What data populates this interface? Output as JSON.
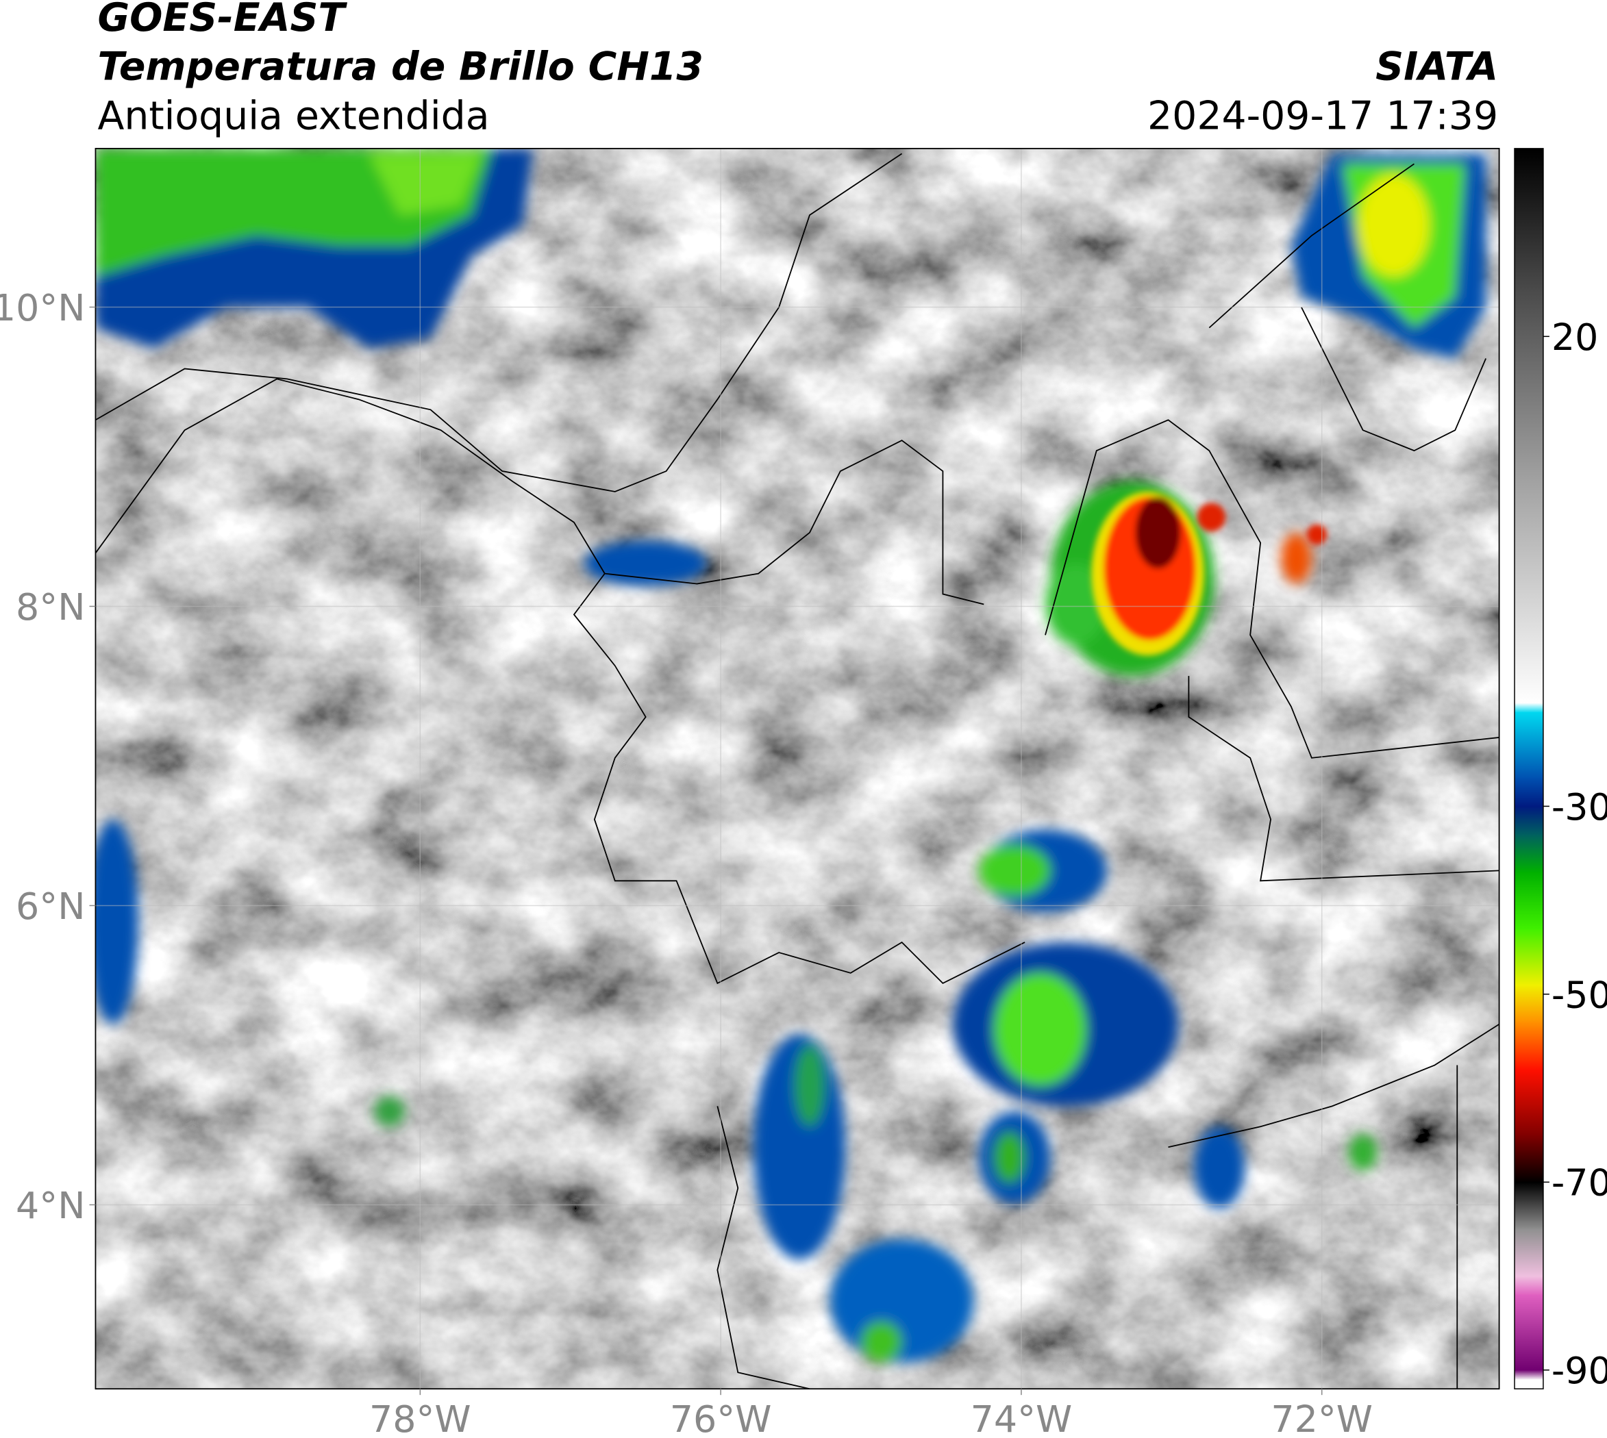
{
  "header": {
    "title": "GOES-EAST",
    "subtitle": "Temperatura de Brillo CH13",
    "region": "Antioquia extendida",
    "source": "SIATA",
    "datetime": "2024-09-17 17:39"
  },
  "map": {
    "xlim": [
      -80.16,
      -70.82
    ],
    "ylim": [
      2.77,
      11.06
    ],
    "xticks": [
      {
        "value": -78,
        "label": "78°W"
      },
      {
        "value": -76,
        "label": "76°W"
      },
      {
        "value": -74,
        "label": "74°W"
      },
      {
        "value": -72,
        "label": "72°W"
      }
    ],
    "yticks": [
      {
        "value": 10,
        "label": "10°N"
      },
      {
        "value": 8,
        "label": "8°N"
      },
      {
        "value": 6,
        "label": "6°N"
      },
      {
        "value": 4,
        "label": "4°N"
      }
    ],
    "grid": true
  },
  "colorbar": {
    "lim": [
      -92,
      40
    ],
    "ticks": [
      20,
      -30,
      -50,
      -70,
      -90
    ],
    "stops": [
      {
        "value": 40,
        "color": "#000000"
      },
      {
        "value": 25,
        "color": "#4a4a4a"
      },
      {
        "value": 5,
        "color": "#a0a0a0"
      },
      {
        "value": -19,
        "color": "#ffffff"
      },
      {
        "value": -20,
        "color": "#00d8f0"
      },
      {
        "value": -27,
        "color": "#0050b0"
      },
      {
        "value": -30,
        "color": "#001a80"
      },
      {
        "value": -33,
        "color": "#006060"
      },
      {
        "value": -37,
        "color": "#00b000"
      },
      {
        "value": -43,
        "color": "#40f000"
      },
      {
        "value": -49,
        "color": "#f0f000"
      },
      {
        "value": -53,
        "color": "#ff9000"
      },
      {
        "value": -58,
        "color": "#ff1000"
      },
      {
        "value": -65,
        "color": "#800000"
      },
      {
        "value": -70,
        "color": "#000000"
      },
      {
        "value": -75,
        "color": "#909090"
      },
      {
        "value": -80,
        "color": "#f0c0e0"
      },
      {
        "value": -82,
        "color": "#e060c0"
      },
      {
        "value": -90,
        "color": "#700070"
      },
      {
        "value": -91,
        "color": "#ffffff"
      }
    ]
  }
}
